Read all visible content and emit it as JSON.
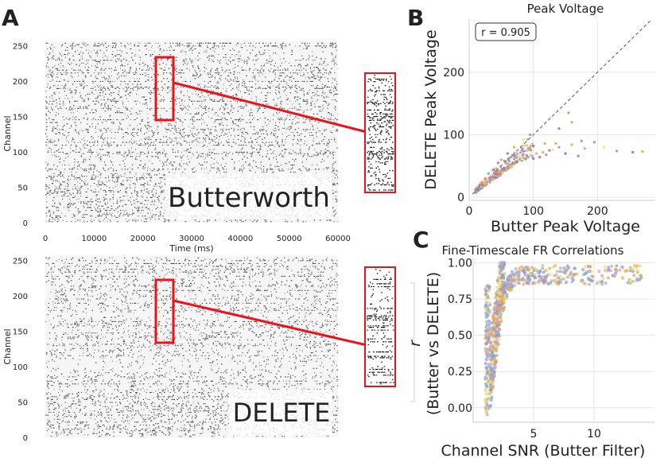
{
  "panels": {
    "A": {
      "label": "A",
      "top_raster": {
        "ylabel": "Channel",
        "xlabel": "Time (ms)",
        "watermark": "Butterworth"
      },
      "bottom_raster": {
        "ylabel": "Channel",
        "watermark": "DELETE"
      }
    },
    "B": {
      "label": "B",
      "title": "Peak Voltage",
      "xlabel": "Butter Peak Voltage",
      "ylabel": "DELETE Peak Voltage",
      "annotation": "r = 0.905"
    },
    "C": {
      "label": "C",
      "title": "Fine-Timescale FR Correlations",
      "xlabel": "Channel SNR (Butter Filter)",
      "ylabel_line1": "r",
      "ylabel_line2": "(Butter vs DELETE)"
    }
  },
  "colors": {
    "highlight": "#e8141b",
    "raster": "#111111",
    "diag": "#555555",
    "points": [
      "#8e6bb8",
      "#f0a541",
      "#9b7aa6",
      "#c9a96e",
      "#7aa3c9",
      "#f3e07a",
      "#b784c4"
    ]
  },
  "chart_data": [
    {
      "type": "scatter",
      "name": "raster-butterworth",
      "xlim": [
        0,
        60000
      ],
      "ylim": [
        0,
        256
      ],
      "x_ticks": [
        0,
        10000,
        20000,
        30000,
        40000,
        50000,
        60000
      ],
      "y_ticks": [
        0,
        50,
        100,
        150,
        200,
        250
      ],
      "highlight_window": {
        "x": [
          23000,
          26500
        ],
        "y": [
          148,
          218
        ]
      }
    },
    {
      "type": "scatter",
      "name": "raster-delete",
      "xlim": [
        0,
        60000
      ],
      "ylim": [
        0,
        256
      ],
      "y_ticks": [
        0,
        50,
        100,
        150,
        200,
        250
      ],
      "highlight_window": {
        "x": [
          23000,
          26500
        ],
        "y": [
          132,
          218
        ]
      }
    },
    {
      "type": "scatter",
      "name": "peak-voltage",
      "xlim": [
        0,
        290
      ],
      "ylim": [
        -5,
        285
      ],
      "x_ticks": [
        0,
        100,
        200
      ],
      "y_ticks": [
        0,
        100,
        200
      ],
      "grid": true,
      "identity_line": true,
      "points": [
        [
          10,
          12
        ],
        [
          12,
          13
        ],
        [
          14,
          15
        ],
        [
          15,
          14
        ],
        [
          17,
          18
        ],
        [
          18,
          16
        ],
        [
          20,
          20
        ],
        [
          22,
          19
        ],
        [
          24,
          23
        ],
        [
          25,
          21
        ],
        [
          27,
          24
        ],
        [
          28,
          26
        ],
        [
          30,
          27
        ],
        [
          32,
          28
        ],
        [
          33,
          30
        ],
        [
          35,
          31
        ],
        [
          36,
          29
        ],
        [
          38,
          33
        ],
        [
          40,
          35
        ],
        [
          42,
          34
        ],
        [
          43,
          38
        ],
        [
          45,
          36
        ],
        [
          47,
          40
        ],
        [
          48,
          39
        ],
        [
          50,
          42
        ],
        [
          52,
          41
        ],
        [
          54,
          44
        ],
        [
          55,
          46
        ],
        [
          57,
          43
        ],
        [
          58,
          47
        ],
        [
          60,
          49
        ],
        [
          62,
          48
        ],
        [
          64,
          52
        ],
        [
          65,
          50
        ],
        [
          67,
          53
        ],
        [
          68,
          55
        ],
        [
          70,
          54
        ],
        [
          72,
          56
        ],
        [
          74,
          58
        ],
        [
          75,
          57
        ],
        [
          78,
          60
        ],
        [
          80,
          62
        ],
        [
          82,
          59
        ],
        [
          85,
          63
        ],
        [
          88,
          61
        ],
        [
          90,
          65
        ],
        [
          92,
          64
        ],
        [
          95,
          68
        ],
        [
          98,
          66
        ],
        [
          100,
          62
        ],
        [
          105,
          70
        ],
        [
          110,
          64
        ],
        [
          115,
          72
        ],
        [
          120,
          68
        ],
        [
          130,
          76
        ],
        [
          140,
          80
        ],
        [
          150,
          70
        ],
        [
          160,
          84
        ],
        [
          170,
          66
        ],
        [
          180,
          78
        ],
        [
          195,
          88
        ],
        [
          210,
          80
        ],
        [
          230,
          74
        ],
        [
          255,
          72
        ],
        [
          270,
          73
        ],
        [
          140,
          110
        ],
        [
          160,
          120
        ],
        [
          155,
          135
        ],
        [
          85,
          92
        ],
        [
          95,
          100
        ],
        [
          60,
          70
        ],
        [
          70,
          80
        ],
        [
          45,
          55
        ],
        [
          50,
          60
        ],
        [
          30,
          38
        ],
        [
          35,
          42
        ],
        [
          25,
          30
        ],
        [
          20,
          24
        ],
        [
          18,
          22
        ],
        [
          16,
          19
        ],
        [
          13,
          16
        ],
        [
          11,
          14
        ],
        [
          22,
          26
        ],
        [
          26,
          28
        ],
        [
          38,
          44
        ],
        [
          42,
          46
        ],
        [
          55,
          58
        ],
        [
          62,
          60
        ],
        [
          65,
          64
        ],
        [
          78,
          66
        ],
        [
          92,
          78
        ],
        [
          100,
          82
        ],
        [
          118,
          86
        ],
        [
          125,
          75
        ],
        [
          135,
          86
        ],
        [
          175,
          90
        ]
      ],
      "annotation": "r = 0.905"
    },
    {
      "type": "scatter",
      "name": "fr-correlations",
      "xlim": [
        0,
        15
      ],
      "ylim": [
        -0.1,
        1.03
      ],
      "x_ticks": [
        5,
        10
      ],
      "y_ticks": [
        0.0,
        0.25,
        0.5,
        0.75,
        1.0
      ],
      "grid": true,
      "points_summary": "dense rise near SNR 1-2 from ~0 to ~0.95, plateau near 0.9-1.0 out to SNR ~14"
    }
  ]
}
